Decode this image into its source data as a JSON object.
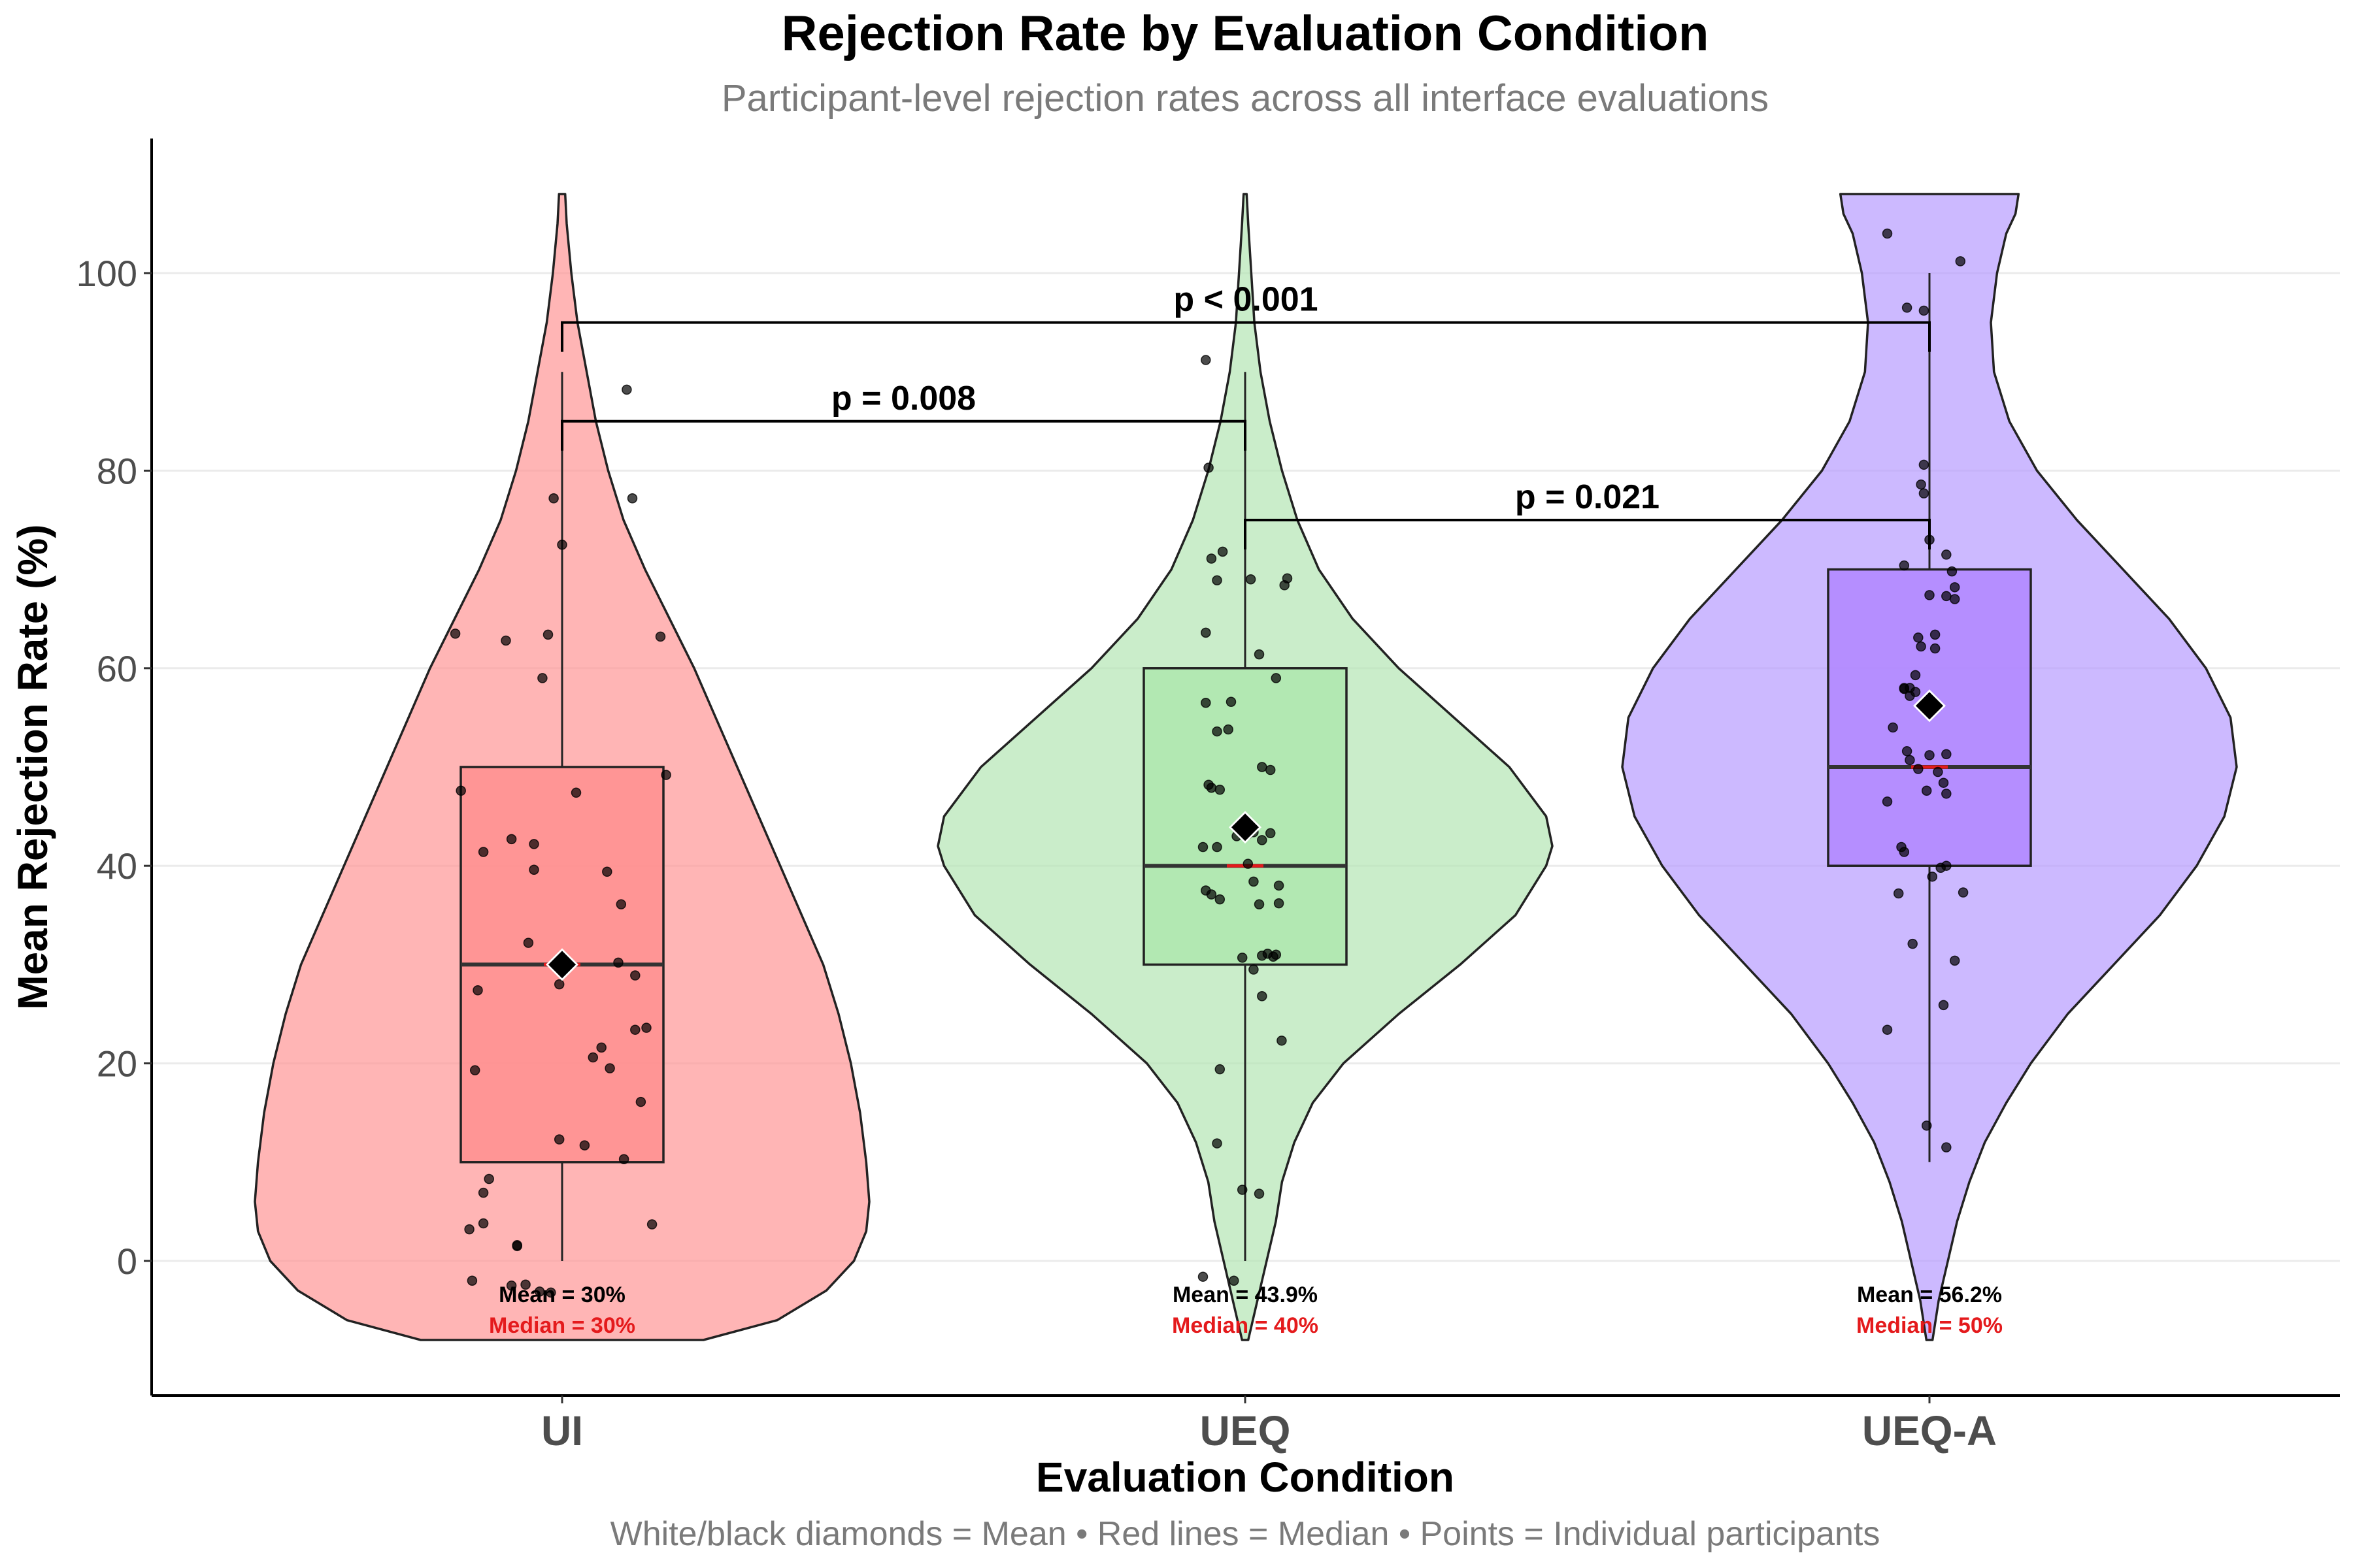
{
  "chart_data": {
    "type": "violin-box-jitter",
    "title": "Rejection Rate by Evaluation Condition",
    "subtitle": "Participant-level rejection rates across all interface evaluations",
    "xlabel": "Evaluation Condition",
    "ylabel": "Mean Rejection Rate (%)",
    "caption": "White/black diamonds = Mean • Red lines = Median • Points = Individual participants",
    "ylim": [
      -14,
      114
    ],
    "yticks": [
      0,
      20,
      40,
      60,
      80,
      100
    ],
    "grid": "horizontal major",
    "categories": [
      "UI",
      "UEQ",
      "UEQ-A"
    ],
    "groups": [
      {
        "name": "UI",
        "color": "#ff9696",
        "box_color": "#ff8f8f",
        "q1": 10,
        "median": 30,
        "q3": 50,
        "whisker_low": 0,
        "whisker_high": 90,
        "mean": 30,
        "mean_label": "Mean = 30%",
        "median_label": "Median = 30%",
        "violin_range": [
          -8,
          108
        ],
        "violin_profile": [
          [
            -8,
            0.46
          ],
          [
            -6,
            0.7
          ],
          [
            -3,
            0.86
          ],
          [
            0,
            0.95
          ],
          [
            3,
            0.99
          ],
          [
            6,
            1.0
          ],
          [
            10,
            0.99
          ],
          [
            15,
            0.97
          ],
          [
            20,
            0.94
          ],
          [
            25,
            0.9
          ],
          [
            30,
            0.85
          ],
          [
            35,
            0.78
          ],
          [
            40,
            0.71
          ],
          [
            45,
            0.64
          ],
          [
            50,
            0.57
          ],
          [
            55,
            0.5
          ],
          [
            60,
            0.43
          ],
          [
            65,
            0.35
          ],
          [
            70,
            0.27
          ],
          [
            75,
            0.2
          ],
          [
            80,
            0.15
          ],
          [
            85,
            0.11
          ],
          [
            90,
            0.08
          ],
          [
            95,
            0.05
          ],
          [
            100,
            0.03
          ],
          [
            105,
            0.015
          ],
          [
            108,
            0.01
          ]
        ],
        "points": [
          [
            0.23,
            88.2
          ],
          [
            -0.03,
            77.2
          ],
          [
            0.25,
            77.2
          ],
          [
            0.0,
            72.5
          ],
          [
            -0.38,
            63.5
          ],
          [
            -0.2,
            62.8
          ],
          [
            -0.05,
            63.4
          ],
          [
            0.35,
            63.2
          ],
          [
            -0.07,
            59.0
          ],
          [
            -0.36,
            47.6
          ],
          [
            0.05,
            47.4
          ],
          [
            0.37,
            49.2
          ],
          [
            -0.18,
            42.7
          ],
          [
            -0.1,
            42.2
          ],
          [
            -0.28,
            41.4
          ],
          [
            0.16,
            39.4
          ],
          [
            -0.1,
            39.6
          ],
          [
            0.21,
            36.1
          ],
          [
            -0.12,
            32.2
          ],
          [
            0.02,
            30.1
          ],
          [
            0.2,
            30.2
          ],
          [
            -0.3,
            27.4
          ],
          [
            0.26,
            28.9
          ],
          [
            -0.01,
            28.0
          ],
          [
            0.3,
            23.6
          ],
          [
            0.26,
            23.4
          ],
          [
            0.14,
            21.6
          ],
          [
            0.11,
            20.6
          ],
          [
            0.17,
            19.5
          ],
          [
            -0.31,
            19.3
          ],
          [
            0.28,
            16.1
          ],
          [
            -0.01,
            12.3
          ],
          [
            0.08,
            11.7
          ],
          [
            0.22,
            10.3
          ],
          [
            -0.26,
            8.3
          ],
          [
            -0.28,
            6.9
          ],
          [
            -0.28,
            3.8
          ],
          [
            -0.33,
            3.2
          ],
          [
            0.32,
            3.7
          ],
          [
            -0.16,
            1.6
          ],
          [
            -0.16,
            1.5
          ],
          [
            -0.32,
            -2.0
          ],
          [
            -0.18,
            -2.5
          ],
          [
            -0.13,
            -2.4
          ],
          [
            -0.08,
            -3.1
          ],
          [
            -0.04,
            -3.2
          ]
        ]
      },
      {
        "name": "UEQ",
        "color": "#b3e6b3",
        "box_color": "#aee6ae",
        "q1": 30,
        "median": 40,
        "q3": 60,
        "whisker_low": 0,
        "whisker_high": 90,
        "mean": 43.9,
        "mean_label": "Mean = 43.9%",
        "median_label": "Median = 40%",
        "violin_range": [
          -8,
          108
        ],
        "violin_profile": [
          [
            -8,
            0.01
          ],
          [
            -4,
            0.04
          ],
          [
            0,
            0.07
          ],
          [
            4,
            0.1
          ],
          [
            8,
            0.12
          ],
          [
            12,
            0.16
          ],
          [
            16,
            0.22
          ],
          [
            20,
            0.32
          ],
          [
            25,
            0.5
          ],
          [
            30,
            0.7
          ],
          [
            35,
            0.88
          ],
          [
            40,
            0.98
          ],
          [
            42,
            1.0
          ],
          [
            45,
            0.98
          ],
          [
            50,
            0.86
          ],
          [
            55,
            0.68
          ],
          [
            60,
            0.5
          ],
          [
            65,
            0.35
          ],
          [
            70,
            0.24
          ],
          [
            75,
            0.17
          ],
          [
            80,
            0.12
          ],
          [
            85,
            0.08
          ],
          [
            90,
            0.05
          ],
          [
            95,
            0.03
          ],
          [
            100,
            0.02
          ],
          [
            105,
            0.01
          ],
          [
            108,
            0.005
          ]
        ],
        "points": [
          [
            -0.14,
            91.2
          ],
          [
            -0.13,
            80.3
          ],
          [
            -0.08,
            71.8
          ],
          [
            -0.12,
            71.1
          ],
          [
            -0.1,
            68.9
          ],
          [
            0.02,
            69.0
          ],
          [
            0.14,
            68.4
          ],
          [
            0.15,
            69.1
          ],
          [
            -0.14,
            63.6
          ],
          [
            0.05,
            61.4
          ],
          [
            0.11,
            59.0
          ],
          [
            -0.14,
            56.5
          ],
          [
            -0.05,
            56.6
          ],
          [
            -0.06,
            53.8
          ],
          [
            -0.1,
            53.6
          ],
          [
            0.06,
            50.0
          ],
          [
            0.09,
            49.7
          ],
          [
            -0.13,
            48.2
          ],
          [
            -0.12,
            47.9
          ],
          [
            -0.09,
            47.7
          ],
          [
            -0.03,
            43.0
          ],
          [
            0.01,
            43.2
          ],
          [
            0.03,
            43.4
          ],
          [
            -0.15,
            41.9
          ],
          [
            0.09,
            43.3
          ],
          [
            0.06,
            42.6
          ],
          [
            -0.1,
            41.9
          ],
          [
            0.01,
            40.2
          ],
          [
            0.03,
            38.4
          ],
          [
            -0.14,
            37.5
          ],
          [
            0.12,
            38.0
          ],
          [
            -0.09,
            36.6
          ],
          [
            -0.12,
            37.1
          ],
          [
            0.05,
            36.1
          ],
          [
            0.12,
            36.2
          ],
          [
            -0.01,
            30.7
          ],
          [
            0.08,
            31.1
          ],
          [
            0.06,
            30.9
          ],
          [
            0.1,
            30.8
          ],
          [
            0.11,
            31.0
          ],
          [
            0.03,
            29.5
          ],
          [
            0.06,
            26.8
          ],
          [
            0.13,
            22.3
          ],
          [
            -0.09,
            19.4
          ],
          [
            -0.1,
            11.9
          ],
          [
            -0.01,
            7.2
          ],
          [
            0.05,
            6.8
          ],
          [
            -0.15,
            -1.6
          ],
          [
            -0.04,
            -2.0
          ]
        ]
      },
      {
        "name": "UEQ-A",
        "color": "#b79bff",
        "box_color": "#b086ff",
        "q1": 40,
        "median": 50,
        "q3": 70,
        "whisker_low": 10,
        "whisker_high": 100,
        "mean": 56.2,
        "mean_label": "Mean = 56.2%",
        "median_label": "Median = 50%",
        "violin_range": [
          -8,
          108
        ],
        "violin_profile": [
          [
            -8,
            0.01
          ],
          [
            -4,
            0.03
          ],
          [
            0,
            0.06
          ],
          [
            4,
            0.09
          ],
          [
            8,
            0.13
          ],
          [
            12,
            0.18
          ],
          [
            16,
            0.25
          ],
          [
            20,
            0.33
          ],
          [
            25,
            0.45
          ],
          [
            30,
            0.6
          ],
          [
            35,
            0.75
          ],
          [
            40,
            0.87
          ],
          [
            45,
            0.96
          ],
          [
            50,
            1.0
          ],
          [
            55,
            0.98
          ],
          [
            60,
            0.9
          ],
          [
            65,
            0.78
          ],
          [
            70,
            0.63
          ],
          [
            75,
            0.48
          ],
          [
            80,
            0.35
          ],
          [
            85,
            0.26
          ],
          [
            90,
            0.21
          ],
          [
            95,
            0.2
          ],
          [
            100,
            0.22
          ],
          [
            104,
            0.25
          ],
          [
            106,
            0.28
          ],
          [
            108,
            0.29
          ]
        ],
        "points": [
          [
            -0.15,
            104.0
          ],
          [
            0.11,
            101.2
          ],
          [
            -0.08,
            96.5
          ],
          [
            -0.02,
            96.2
          ],
          [
            -0.02,
            80.6
          ],
          [
            -0.03,
            78.6
          ],
          [
            -0.02,
            77.7
          ],
          [
            0.0,
            73.0
          ],
          [
            0.06,
            71.5
          ],
          [
            -0.09,
            70.4
          ],
          [
            0.08,
            69.8
          ],
          [
            0.0,
            67.4
          ],
          [
            0.06,
            67.3
          ],
          [
            0.09,
            68.2
          ],
          [
            0.09,
            67.0
          ],
          [
            0.02,
            63.4
          ],
          [
            -0.04,
            63.1
          ],
          [
            0.02,
            62.0
          ],
          [
            -0.03,
            62.2
          ],
          [
            -0.05,
            59.3
          ],
          [
            -0.07,
            58.0
          ],
          [
            -0.09,
            57.9
          ],
          [
            -0.09,
            58.0
          ],
          [
            -0.07,
            57.2
          ],
          [
            -0.05,
            57.6
          ],
          [
            -0.13,
            54.0
          ],
          [
            -0.08,
            51.6
          ],
          [
            -0.07,
            50.7
          ],
          [
            -0.04,
            49.8
          ],
          [
            0.03,
            49.5
          ],
          [
            0.0,
            51.2
          ],
          [
            0.06,
            51.3
          ],
          [
            0.05,
            48.4
          ],
          [
            0.06,
            47.3
          ],
          [
            -0.01,
            47.6
          ],
          [
            -0.15,
            46.5
          ],
          [
            -0.1,
            41.9
          ],
          [
            -0.09,
            41.4
          ],
          [
            0.01,
            38.9
          ],
          [
            0.04,
            39.8
          ],
          [
            0.06,
            40.0
          ],
          [
            0.12,
            37.3
          ],
          [
            -0.11,
            37.2
          ],
          [
            -0.06,
            32.1
          ],
          [
            0.09,
            30.4
          ],
          [
            0.05,
            25.9
          ],
          [
            -0.15,
            23.4
          ],
          [
            -0.01,
            13.7
          ],
          [
            0.06,
            11.5
          ]
        ]
      }
    ],
    "comparisons": [
      {
        "from": 0,
        "to": 1,
        "y": 85,
        "label": "p = 0.008"
      },
      {
        "from": 1,
        "to": 2,
        "y": 75,
        "label": "p = 0.021"
      },
      {
        "from": 0,
        "to": 2,
        "y": 95,
        "label": "p < 0.001"
      }
    ]
  }
}
